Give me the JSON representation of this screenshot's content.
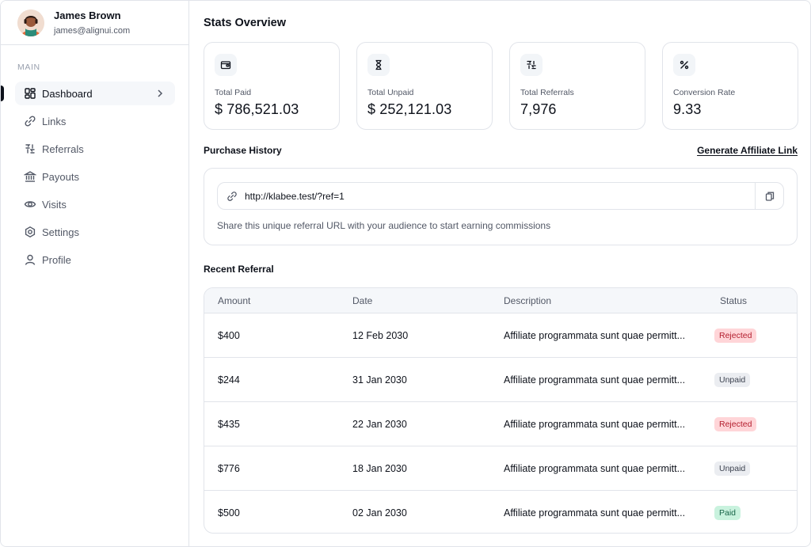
{
  "user": {
    "name": "James Brown",
    "email": "james@alignui.com"
  },
  "sidebar": {
    "section_label": "MAIN",
    "items": [
      {
        "label": "Dashboard",
        "icon": "dashboard-icon",
        "active": true
      },
      {
        "label": "Links",
        "icon": "link-icon"
      },
      {
        "label": "Referrals",
        "icon": "referrals-icon"
      },
      {
        "label": "Payouts",
        "icon": "bank-icon"
      },
      {
        "label": "Visits",
        "icon": "eye-icon"
      },
      {
        "label": "Settings",
        "icon": "gear-icon"
      },
      {
        "label": "Profile",
        "icon": "user-icon"
      }
    ]
  },
  "main": {
    "title": "Stats Overview",
    "stats": [
      {
        "label": "Total Paid",
        "value": "$ 786,521.03",
        "icon": "wallet-icon"
      },
      {
        "label": "Total Unpaid",
        "value": "$ 252,121.03",
        "icon": "hourglass-icon"
      },
      {
        "label": "Total Referrals",
        "value": "7,976",
        "icon": "referrals-icon"
      },
      {
        "label": "Conversion Rate",
        "value": "9.33",
        "icon": "percent-icon"
      }
    ],
    "purchase_history_title": "Purchase History",
    "generate_link_label": "Generate Affiliate Link",
    "referral_url": "http://klabee.test/?ref=1",
    "referral_hint": "Share this unique referral URL with your audience to start earning commissions",
    "recent_title": "Recent Referral",
    "table": {
      "columns": [
        "Amount",
        "Date",
        "Description",
        "Status"
      ],
      "rows": [
        {
          "amount": "$400",
          "date": "12 Feb 2030",
          "description": "Affiliate programmata sunt quae permitt...",
          "status": "Rejected"
        },
        {
          "amount": "$244",
          "date": "31 Jan 2030",
          "description": "Affiliate programmata sunt quae permitt...",
          "status": "Unpaid"
        },
        {
          "amount": "$435",
          "date": "22 Jan 2030",
          "description": "Affiliate programmata sunt quae permitt...",
          "status": "Rejected"
        },
        {
          "amount": "$776",
          "date": "18 Jan 2030",
          "description": "Affiliate programmata sunt quae permitt...",
          "status": "Unpaid"
        },
        {
          "amount": "$500",
          "date": "02 Jan 2030",
          "description": "Affiliate programmata sunt quae permitt...",
          "status": "Paid"
        }
      ]
    }
  },
  "colors": {
    "text": "#0e121b",
    "muted": "#525866",
    "border": "#e1e4ea",
    "rejected": "#ffd5d8",
    "unpaid": "#ebedf1",
    "paid": "#c9f2de"
  }
}
